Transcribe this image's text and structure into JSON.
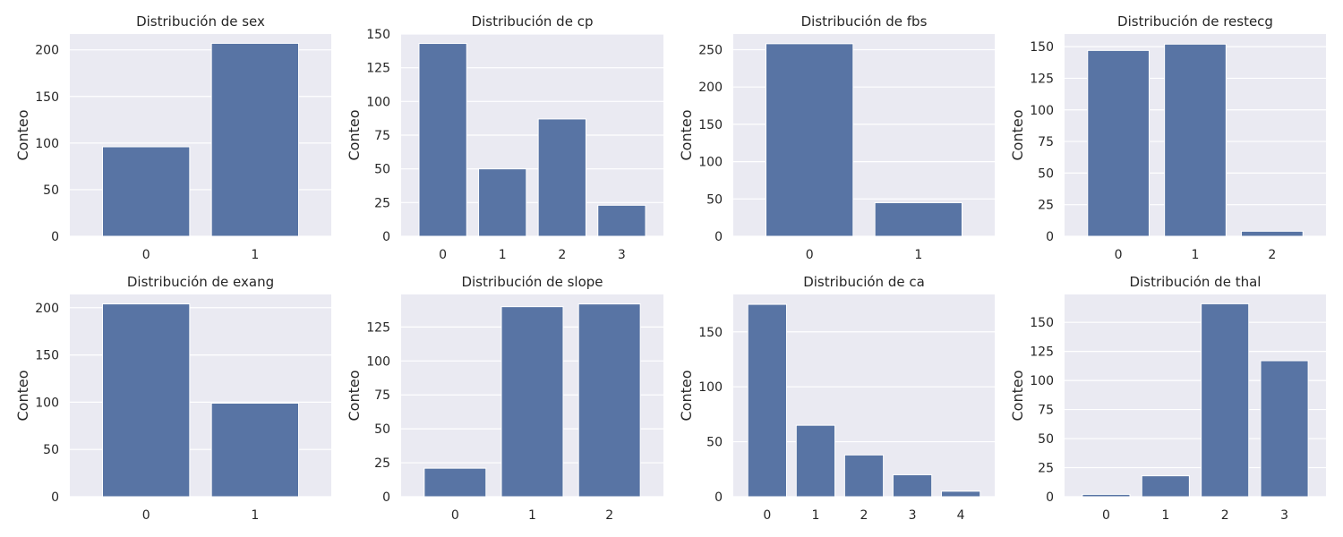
{
  "chart_data": [
    {
      "type": "bar",
      "title": "Distribución de sex",
      "ylabel": "Conteo",
      "xlabel": "",
      "categories": [
        "0",
        "1"
      ],
      "values": [
        96,
        207
      ],
      "ylim": [
        0,
        217
      ],
      "yticks": [
        0,
        50,
        100,
        150,
        200
      ],
      "grid": true,
      "color": "#5874a4"
    },
    {
      "type": "bar",
      "title": "Distribución de cp",
      "ylabel": "Conteo",
      "xlabel": "",
      "categories": [
        "0",
        "1",
        "2",
        "3"
      ],
      "values": [
        143,
        50,
        87,
        23
      ],
      "ylim": [
        0,
        150
      ],
      "yticks": [
        0,
        25,
        50,
        75,
        100,
        125,
        150
      ],
      "grid": true,
      "color": "#5874a4"
    },
    {
      "type": "bar",
      "title": "Distribución de fbs",
      "ylabel": "Conteo",
      "xlabel": "",
      "categories": [
        "0",
        "1"
      ],
      "values": [
        258,
        45
      ],
      "ylim": [
        0,
        271
      ],
      "yticks": [
        0,
        50,
        100,
        150,
        200,
        250
      ],
      "grid": true,
      "color": "#5874a4"
    },
    {
      "type": "bar",
      "title": "Distribución de restecg",
      "ylabel": "Conteo",
      "xlabel": "",
      "categories": [
        "0",
        "1",
        "2"
      ],
      "values": [
        147,
        152,
        4
      ],
      "ylim": [
        0,
        160
      ],
      "yticks": [
        0,
        25,
        50,
        75,
        100,
        125,
        150
      ],
      "grid": true,
      "color": "#5874a4"
    },
    {
      "type": "bar",
      "title": "Distribución de exang",
      "ylabel": "Conteo",
      "xlabel": "",
      "categories": [
        "0",
        "1"
      ],
      "values": [
        204,
        99
      ],
      "ylim": [
        0,
        214
      ],
      "yticks": [
        0,
        50,
        100,
        150,
        200
      ],
      "grid": true,
      "color": "#5874a4"
    },
    {
      "type": "bar",
      "title": "Distribución de slope",
      "ylabel": "Conteo",
      "xlabel": "",
      "categories": [
        "0",
        "1",
        "2"
      ],
      "values": [
        21,
        140,
        142
      ],
      "ylim": [
        0,
        149
      ],
      "yticks": [
        0,
        25,
        50,
        75,
        100,
        125
      ],
      "grid": true,
      "color": "#5874a4"
    },
    {
      "type": "bar",
      "title": "Distribución de ca",
      "ylabel": "Conteo",
      "xlabel": "",
      "categories": [
        "0",
        "1",
        "2",
        "3",
        "4"
      ],
      "values": [
        175,
        65,
        38,
        20,
        5
      ],
      "ylim": [
        0,
        184
      ],
      "yticks": [
        0,
        50,
        100,
        150
      ],
      "grid": true,
      "color": "#5874a4"
    },
    {
      "type": "bar",
      "title": "Distribución de thal",
      "ylabel": "Conteo",
      "xlabel": "",
      "categories": [
        "0",
        "1",
        "2",
        "3"
      ],
      "values": [
        2,
        18,
        166,
        117
      ],
      "ylim": [
        0,
        174
      ],
      "yticks": [
        0,
        25,
        50,
        75,
        100,
        125,
        150
      ],
      "grid": true,
      "color": "#5874a4"
    }
  ]
}
